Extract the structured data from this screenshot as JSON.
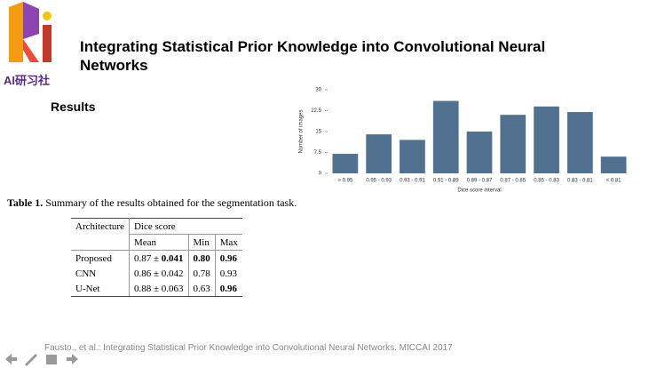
{
  "logo_text": "AI研习社",
  "title": "Integrating Statistical Prior Knowledge into Convolutional Neural Networks",
  "section_heading": "Results",
  "chart_data": {
    "type": "bar",
    "ylabel": "Number of images",
    "xlabel": "Dice score interval",
    "categories": [
      "> 0.95",
      "0.95 - 0.93",
      "0.93 - 0.91",
      "0.91 - 0.89",
      "0.89 - 0.87",
      "0.87 - 0.85",
      "0.85 - 0.83",
      "0.83 - 0.81",
      "< 0.81"
    ],
    "values": [
      7,
      14,
      12,
      26,
      15,
      21,
      24,
      22,
      6
    ],
    "color": "#52708f",
    "ylim": [
      0,
      30
    ],
    "yticks": [
      0,
      7.5,
      15,
      22.5,
      30
    ],
    "grid": false
  },
  "table": {
    "caption_label": "Table 1.",
    "caption_text": "Summary of the results obtained for the segmentation task.",
    "header": {
      "architecture": "Architecture",
      "dice": "Dice score",
      "mean": "Mean",
      "min": "Min",
      "max": "Max"
    },
    "pm": "±",
    "rows": [
      {
        "architecture": "Proposed",
        "mean": "0.87",
        "sd": "0.041",
        "min": "0.80",
        "max": "0.96",
        "bold": [
          "sd",
          "min",
          "max"
        ]
      },
      {
        "architecture": "CNN",
        "mean": "0.86",
        "sd": "0.042",
        "min": "0.78",
        "max": "0.93",
        "bold": []
      },
      {
        "architecture": "U-Net",
        "mean": "0.88",
        "sd": "0.063",
        "min": "0.63",
        "max": "0.96",
        "bold": [
          "max"
        ]
      }
    ]
  },
  "citation": "Fausto., et al.: Integrating Statistical Prior Knowledge into Convolutional Neural Networks. MICCAI 2017"
}
